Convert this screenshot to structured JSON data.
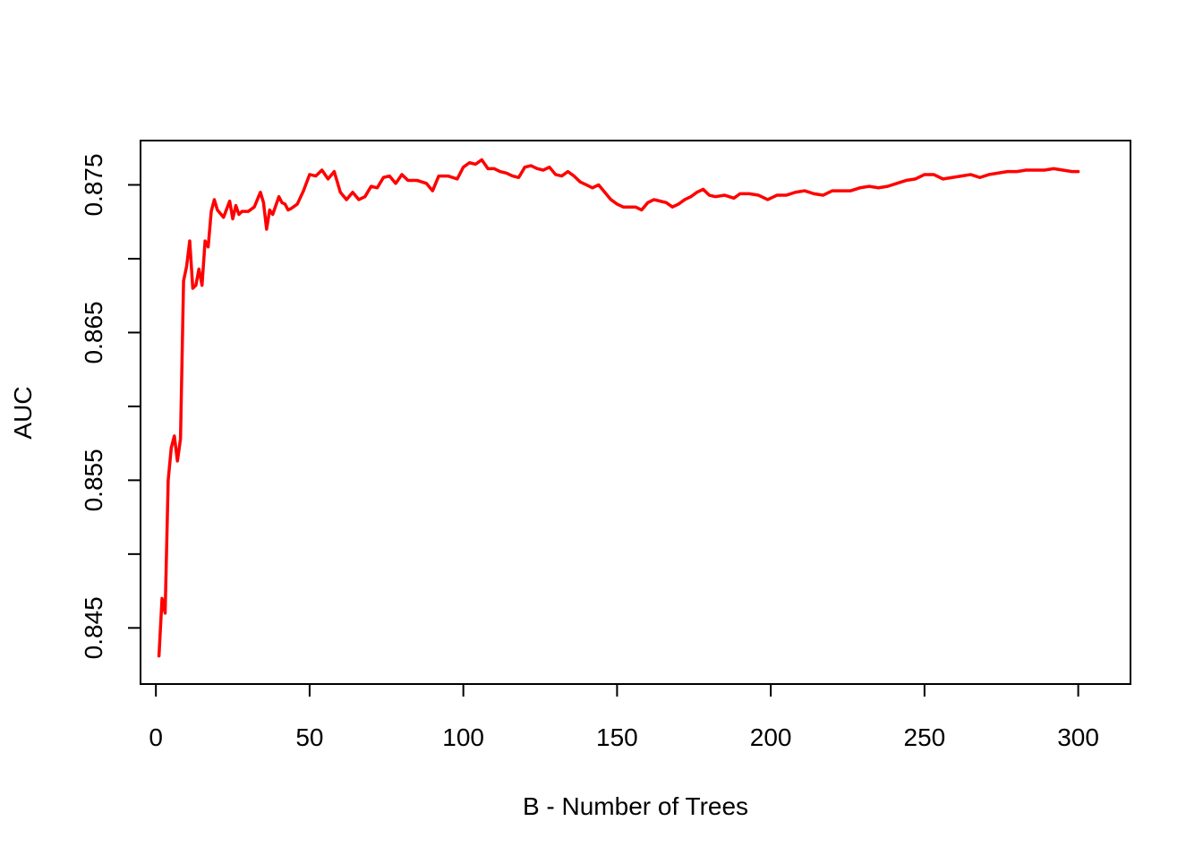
{
  "chart_data": {
    "type": "line",
    "title": "",
    "xlabel": "B - Number of Trees",
    "ylabel": "AUC",
    "xlim": [
      -5,
      317
    ],
    "ylim": [
      0.8412,
      0.878
    ],
    "xticks": [
      0,
      50,
      100,
      150,
      200,
      250,
      300
    ],
    "xtick_labels": [
      "0",
      "50",
      "100",
      "150",
      "200",
      "250",
      "300"
    ],
    "yticks": [
      0.845,
      0.85,
      0.855,
      0.86,
      0.865,
      0.87,
      0.875
    ],
    "ytick_labels": [
      "0.845",
      "",
      "0.855",
      "",
      "0.865",
      "",
      "0.875"
    ],
    "grid": false,
    "legend": "none",
    "series": [
      {
        "color": "#ff0000",
        "x": [
          1,
          2,
          3,
          4,
          5,
          6,
          7,
          8,
          9,
          10,
          11,
          12,
          13,
          14,
          15,
          16,
          17,
          18,
          19,
          20,
          22,
          24,
          25,
          26,
          27,
          28,
          30,
          32,
          34,
          35,
          36,
          37,
          38,
          40,
          41,
          42,
          43,
          44,
          46,
          48,
          50,
          52,
          54,
          56,
          58,
          60,
          62,
          64,
          66,
          68,
          70,
          72,
          74,
          76,
          78,
          80,
          82,
          85,
          88,
          90,
          92,
          95,
          98,
          100,
          102,
          104,
          106,
          108,
          110,
          112,
          114,
          116,
          118,
          120,
          122,
          124,
          126,
          128,
          130,
          132,
          134,
          136,
          138,
          140,
          142,
          144,
          146,
          148,
          150,
          152,
          154,
          156,
          158,
          160,
          162,
          164,
          166,
          168,
          170,
          172,
          174,
          176,
          178,
          180,
          182,
          185,
          188,
          190,
          193,
          196,
          199,
          202,
          205,
          208,
          211,
          214,
          217,
          220,
          223,
          226,
          229,
          232,
          235,
          238,
          241,
          244,
          247,
          250,
          253,
          256,
          259,
          262,
          265,
          268,
          271,
          274,
          277,
          280,
          283,
          286,
          289,
          292,
          295,
          298,
          300
        ],
        "y": [
          0.8431,
          0.847,
          0.846,
          0.855,
          0.8572,
          0.858,
          0.8563,
          0.8578,
          0.8685,
          0.8695,
          0.8712,
          0.868,
          0.8682,
          0.8693,
          0.8682,
          0.8712,
          0.8708,
          0.8732,
          0.874,
          0.8733,
          0.8728,
          0.8739,
          0.8727,
          0.8736,
          0.873,
          0.8732,
          0.8732,
          0.8735,
          0.8745,
          0.8738,
          0.872,
          0.8733,
          0.873,
          0.8742,
          0.8738,
          0.8737,
          0.8733,
          0.8734,
          0.8737,
          0.8746,
          0.8757,
          0.8756,
          0.876,
          0.8754,
          0.8759,
          0.8745,
          0.874,
          0.8745,
          0.874,
          0.8742,
          0.8749,
          0.8748,
          0.8755,
          0.8756,
          0.8751,
          0.8757,
          0.8753,
          0.8753,
          0.8751,
          0.8746,
          0.8756,
          0.8756,
          0.8754,
          0.8762,
          0.8765,
          0.8764,
          0.8767,
          0.8761,
          0.8761,
          0.8759,
          0.8758,
          0.8756,
          0.8755,
          0.8762,
          0.8763,
          0.8761,
          0.876,
          0.8762,
          0.8757,
          0.8756,
          0.8759,
          0.8756,
          0.8752,
          0.875,
          0.8748,
          0.875,
          0.8745,
          0.874,
          0.8737,
          0.8735,
          0.8735,
          0.8735,
          0.8733,
          0.8738,
          0.874,
          0.8739,
          0.8738,
          0.8735,
          0.8737,
          0.874,
          0.8742,
          0.8745,
          0.8747,
          0.8743,
          0.8742,
          0.8743,
          0.8741,
          0.8744,
          0.8744,
          0.8743,
          0.874,
          0.8743,
          0.8743,
          0.8745,
          0.8746,
          0.8744,
          0.8743,
          0.8746,
          0.8746,
          0.8746,
          0.8748,
          0.8749,
          0.8748,
          0.8749,
          0.8751,
          0.8753,
          0.8754,
          0.8757,
          0.8757,
          0.8754,
          0.8755,
          0.8756,
          0.8757,
          0.8755,
          0.8757,
          0.8758,
          0.8759,
          0.8759,
          0.876,
          0.876,
          0.876,
          0.8761,
          0.876,
          0.8759,
          0.8759
        ]
      }
    ]
  }
}
